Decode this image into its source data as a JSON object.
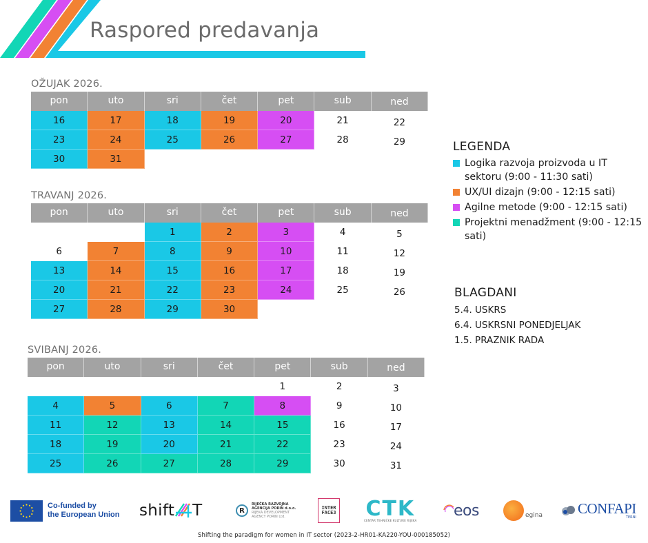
{
  "header": {
    "title": "Raspored predavanja",
    "stripe_colors": [
      "#12d6b6",
      "#d64ef3",
      "#f28233",
      "#1ac8e6"
    ]
  },
  "colors": {
    "logika": "#1ac8e6",
    "ux": "#f28233",
    "agile": "#d64ef3",
    "pm": "#12d6b6",
    "header_gray": "#a3a3a3"
  },
  "weekdays": [
    "pon",
    "uto",
    "sri",
    "čet",
    "pet",
    "sub",
    "ned"
  ],
  "calendars": [
    {
      "title": "OŽUJAK 2026.",
      "weeks": [
        [
          {
            "d": "16",
            "c": "logika"
          },
          {
            "d": "17",
            "c": "ux"
          },
          {
            "d": "18",
            "c": "logika"
          },
          {
            "d": "19",
            "c": "ux"
          },
          {
            "d": "20",
            "c": "agile"
          },
          {
            "d": "21",
            "c": "none"
          },
          {
            "d": "22",
            "c": "none"
          }
        ],
        [
          {
            "d": "23",
            "c": "logika"
          },
          {
            "d": "24",
            "c": "ux"
          },
          {
            "d": "25",
            "c": "logika"
          },
          {
            "d": "26",
            "c": "ux"
          },
          {
            "d": "27",
            "c": "agile"
          },
          {
            "d": "28",
            "c": "none"
          },
          {
            "d": "29",
            "c": "none"
          }
        ],
        [
          {
            "d": "30",
            "c": "logika"
          },
          {
            "d": "31",
            "c": "ux"
          },
          {
            "d": "",
            "c": "none"
          },
          {
            "d": "",
            "c": "none"
          },
          {
            "d": "",
            "c": "none"
          },
          {
            "d": "",
            "c": "none"
          },
          {
            "d": "",
            "c": "none"
          }
        ]
      ]
    },
    {
      "title": "TRAVANJ 2026.",
      "weeks": [
        [
          {
            "d": "",
            "c": "none"
          },
          {
            "d": "",
            "c": "none"
          },
          {
            "d": "1",
            "c": "logika"
          },
          {
            "d": "2",
            "c": "ux"
          },
          {
            "d": "3",
            "c": "agile"
          },
          {
            "d": "4",
            "c": "none"
          },
          {
            "d": "5",
            "c": "none"
          }
        ],
        [
          {
            "d": "6",
            "c": "none"
          },
          {
            "d": "7",
            "c": "ux"
          },
          {
            "d": "8",
            "c": "logika"
          },
          {
            "d": "9",
            "c": "ux"
          },
          {
            "d": "10",
            "c": "agile"
          },
          {
            "d": "11",
            "c": "none"
          },
          {
            "d": "12",
            "c": "none"
          }
        ],
        [
          {
            "d": "13",
            "c": "logika"
          },
          {
            "d": "14",
            "c": "ux"
          },
          {
            "d": "15",
            "c": "logika"
          },
          {
            "d": "16",
            "c": "ux"
          },
          {
            "d": "17",
            "c": "agile"
          },
          {
            "d": "18",
            "c": "none"
          },
          {
            "d": "19",
            "c": "none"
          }
        ],
        [
          {
            "d": "20",
            "c": "logika"
          },
          {
            "d": "21",
            "c": "ux"
          },
          {
            "d": "22",
            "c": "logika"
          },
          {
            "d": "23",
            "c": "ux"
          },
          {
            "d": "24",
            "c": "agile"
          },
          {
            "d": "25",
            "c": "none"
          },
          {
            "d": "26",
            "c": "none"
          }
        ],
        [
          {
            "d": "27",
            "c": "logika"
          },
          {
            "d": "28",
            "c": "ux"
          },
          {
            "d": "29",
            "c": "logika"
          },
          {
            "d": "30",
            "c": "ux"
          },
          {
            "d": "",
            "c": "none"
          },
          {
            "d": "",
            "c": "none"
          },
          {
            "d": "",
            "c": "none"
          }
        ]
      ]
    },
    {
      "title": "SVIBANJ 2026.",
      "weeks": [
        [
          {
            "d": "",
            "c": "none"
          },
          {
            "d": "",
            "c": "none"
          },
          {
            "d": "",
            "c": "none"
          },
          {
            "d": "",
            "c": "none"
          },
          {
            "d": "1",
            "c": "none"
          },
          {
            "d": "2",
            "c": "none"
          },
          {
            "d": "3",
            "c": "none"
          }
        ],
        [
          {
            "d": "4",
            "c": "logika"
          },
          {
            "d": "5",
            "c": "ux"
          },
          {
            "d": "6",
            "c": "logika"
          },
          {
            "d": "7",
            "c": "pm"
          },
          {
            "d": "8",
            "c": "agile"
          },
          {
            "d": "9",
            "c": "none"
          },
          {
            "d": "10",
            "c": "none"
          }
        ],
        [
          {
            "d": "11",
            "c": "logika"
          },
          {
            "d": "12",
            "c": "pm"
          },
          {
            "d": "13",
            "c": "logika"
          },
          {
            "d": "14",
            "c": "pm"
          },
          {
            "d": "15",
            "c": "pm"
          },
          {
            "d": "16",
            "c": "none"
          },
          {
            "d": "17",
            "c": "none"
          }
        ],
        [
          {
            "d": "18",
            "c": "logika"
          },
          {
            "d": "19",
            "c": "pm"
          },
          {
            "d": "20",
            "c": "logika"
          },
          {
            "d": "21",
            "c": "pm"
          },
          {
            "d": "22",
            "c": "pm"
          },
          {
            "d": "23",
            "c": "none"
          },
          {
            "d": "24",
            "c": "none"
          }
        ],
        [
          {
            "d": "25",
            "c": "logika"
          },
          {
            "d": "26",
            "c": "pm"
          },
          {
            "d": "27",
            "c": "pm"
          },
          {
            "d": "28",
            "c": "pm"
          },
          {
            "d": "29",
            "c": "pm"
          },
          {
            "d": "30",
            "c": "none"
          },
          {
            "d": "31",
            "c": "none"
          }
        ]
      ]
    }
  ],
  "legend": {
    "title": "LEGENDA",
    "items": [
      {
        "key": "logika",
        "label": "Logika razvoja proizvoda u IT sektoru (9:00 - 11:30 sati)"
      },
      {
        "key": "ux",
        "label": "UX/UI dizajn (9:00 - 12:15 sati)"
      },
      {
        "key": "agile",
        "label": "Agilne metode (9:00 - 12:15 sati)"
      },
      {
        "key": "pm",
        "label": "Projektni menadžment (9:00 - 12:15 sati)"
      }
    ]
  },
  "holidays": {
    "title": "BLAGDANI",
    "items": [
      "5.4. USKRS",
      "6.4. USKRSNI PONEDJELJAK",
      "1.5. PRAZNIK RADA"
    ]
  },
  "footer": {
    "eu_line1": "Co-funded by",
    "eu_line2": "the European Union",
    "shift_prefix": "shift",
    "shift_suffix": "T",
    "porin_mark": "R",
    "porin_line1": "RIJEČKA RAZVOJNA",
    "porin_line2": "AGENCIJA PORIN d.o.o.",
    "porin_line3": "RIJEKA DEVELOPMENT",
    "porin_line4": "AGENCY PORIN Ltd.",
    "interface_line1": "INTER",
    "interface_line2": "FACE3",
    "ctk_letters": "CTK",
    "ctk_sub": "CENTAR TEHNIČKE KULTURE RIJEKA",
    "eos_text": "eos",
    "egina_text": "egina",
    "confapi_text": "CONFAPI",
    "confapi_sub": "TERNI",
    "caption": "Shifting the paradigm for women in IT sector (2023-2-HR01-KA220-YOU-000185052)"
  }
}
